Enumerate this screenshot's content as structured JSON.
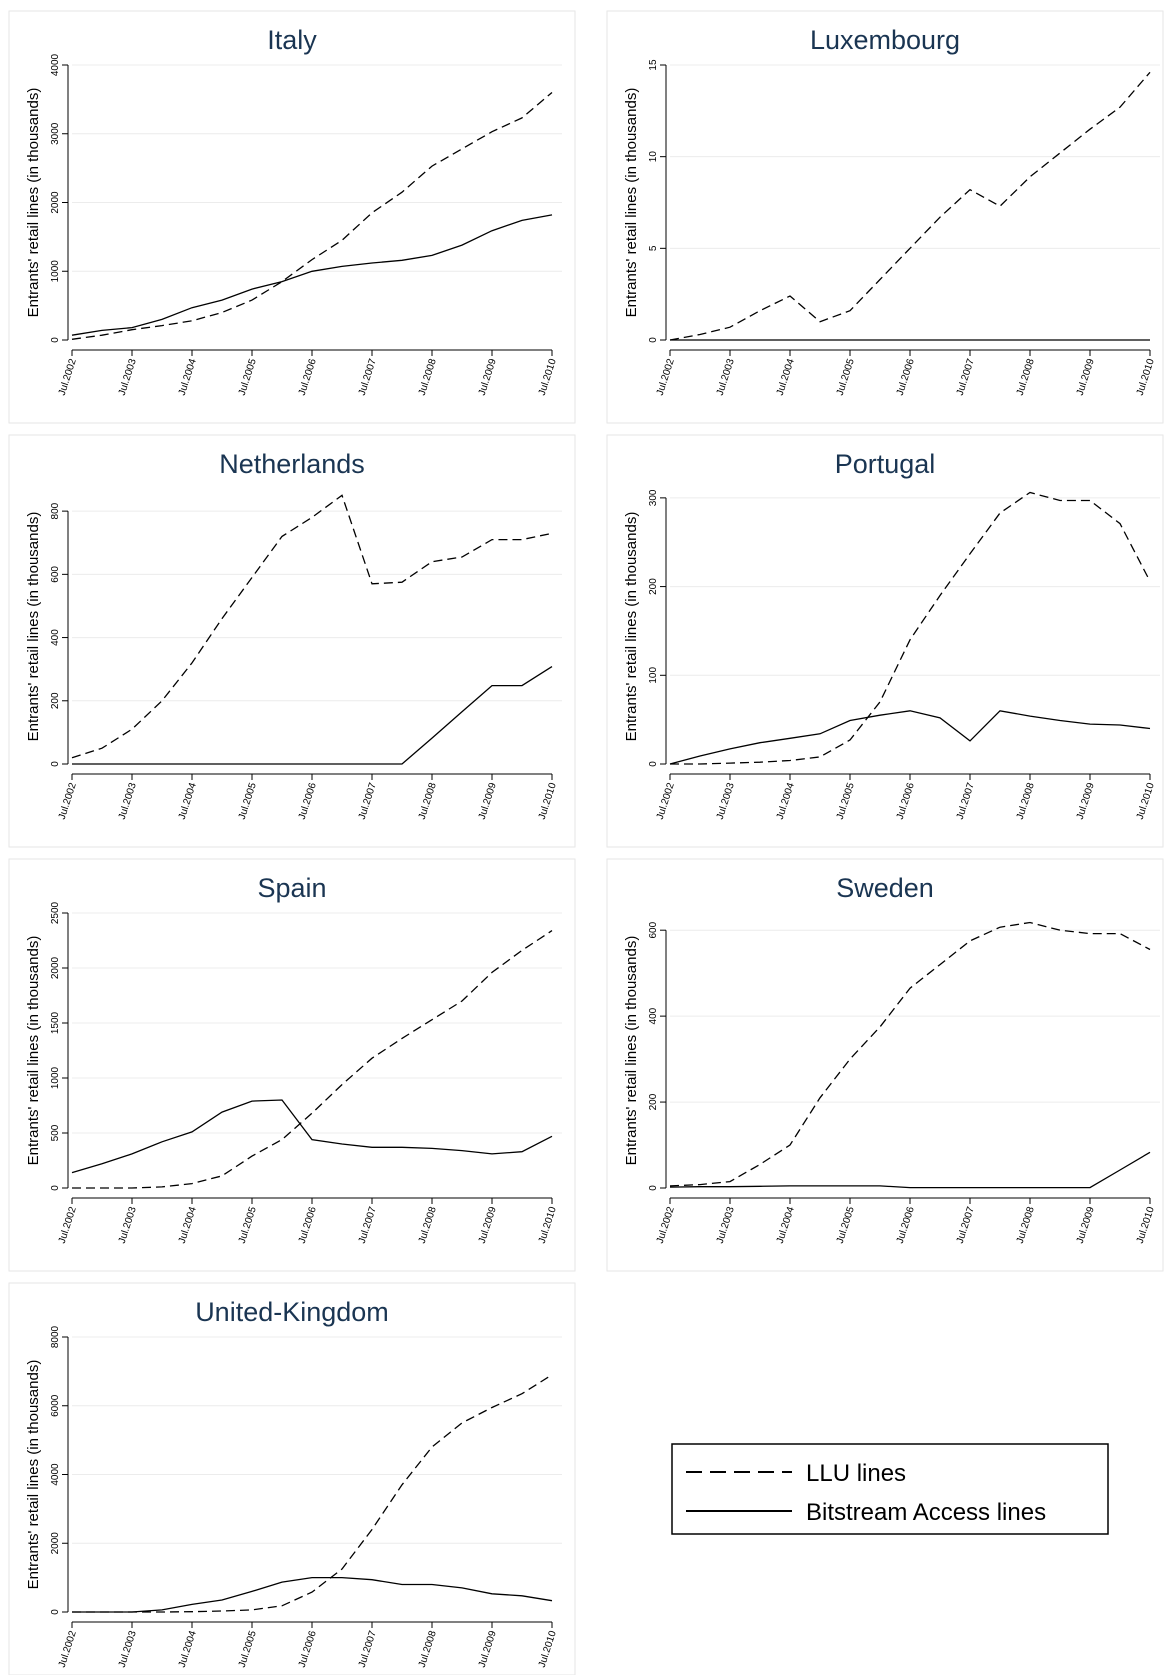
{
  "legend": {
    "llu_label": "LLU lines",
    "bsa_label": "Bitstream Access lines"
  },
  "chart_data": [
    {
      "type": "line",
      "title": "Italy",
      "ylabel": "Entrants' retail lines (in thousands)",
      "x": [
        "Jul.2002",
        "Jan.2003",
        "Jul.2003",
        "Jan.2004",
        "Jul.2004",
        "Jan.2005",
        "Jul.2005",
        "Jan.2006",
        "Jul.2006",
        "Jan.2007",
        "Jul.2007",
        "Jan.2008",
        "Jul.2008",
        "Jan.2009",
        "Jul.2009",
        "Jan.2010",
        "Jul.2010"
      ],
      "xticks": [
        "Jul.2002",
        "Jul.2003",
        "Jul.2004",
        "Jul.2005",
        "Jul.2006",
        "Jul.2007",
        "Jul.2008",
        "Jul.2009",
        "Jul.2010"
      ],
      "ylim": [
        0,
        4000
      ],
      "yticks": [
        0,
        1000,
        2000,
        3000,
        4000
      ],
      "series": [
        {
          "name": "LLU lines",
          "values": [
            10,
            70,
            150,
            210,
            280,
            400,
            580,
            850,
            1170,
            1450,
            1850,
            2150,
            2530,
            2780,
            3030,
            3230,
            3600
          ]
        },
        {
          "name": "Bitstream Access lines",
          "values": [
            70,
            140,
            180,
            300,
            470,
            580,
            740,
            850,
            1000,
            1070,
            1120,
            1160,
            1230,
            1380,
            1590,
            1740,
            1820
          ]
        }
      ]
    },
    {
      "type": "line",
      "title": "Luxembourg",
      "ylabel": "Entrants' retail lines (in thousands)",
      "x": [
        "Jul.2002",
        "Jan.2003",
        "Jul.2003",
        "Jan.2004",
        "Jul.2004",
        "Jan.2005",
        "Jul.2005",
        "Jan.2006",
        "Jul.2006",
        "Jan.2007",
        "Jul.2007",
        "Jan.2008",
        "Jul.2008",
        "Jan.2009",
        "Jul.2009",
        "Jan.2010",
        "Jul.2010"
      ],
      "xticks": [
        "Jul.2002",
        "Jul.2003",
        "Jul.2004",
        "Jul.2005",
        "Jul.2006",
        "Jul.2007",
        "Jul.2008",
        "Jul.2009",
        "Jul.2010"
      ],
      "ylim": [
        0,
        15
      ],
      "yticks": [
        0,
        5,
        10,
        15
      ],
      "series": [
        {
          "name": "LLU lines",
          "values": [
            0,
            0.3,
            0.7,
            1.6,
            2.4,
            1.0,
            1.6,
            3.3,
            5.0,
            6.7,
            8.2,
            7.3,
            8.9,
            10.2,
            11.5,
            12.7,
            14.6
          ]
        },
        {
          "name": "Bitstream Access lines",
          "values": [
            0,
            0,
            0,
            0,
            0,
            0,
            0,
            0,
            0,
            0,
            0,
            0,
            0,
            0,
            0,
            0,
            0
          ]
        }
      ]
    },
    {
      "type": "line",
      "title": "Netherlands",
      "ylabel": "Entrants' retail lines (in thousands)",
      "x": [
        "Jul.2002",
        "Jan.2003",
        "Jul.2003",
        "Jan.2004",
        "Jul.2004",
        "Jan.2005",
        "Jul.2005",
        "Jan.2006",
        "Jul.2006",
        "Jan.2007",
        "Jul.2007",
        "Jan.2008",
        "Jul.2008",
        "Jan.2009",
        "Jul.2009",
        "Jan.2010",
        "Jul.2010"
      ],
      "xticks": [
        "Jul.2002",
        "Jul.2003",
        "Jul.2004",
        "Jul.2005",
        "Jul.2006",
        "Jul.2007",
        "Jul.2008",
        "Jul.2009",
        "Jul.2010"
      ],
      "ylim": [
        0,
        870
      ],
      "yticks": [
        0,
        200,
        400,
        600,
        800
      ],
      "series": [
        {
          "name": "LLU lines",
          "values": [
            20,
            50,
            110,
            200,
            320,
            460,
            590,
            720,
            780,
            850,
            570,
            575,
            640,
            655,
            710,
            710,
            730
          ]
        },
        {
          "name": "Bitstream Access lines",
          "values": [
            0,
            0,
            0,
            0,
            0,
            0,
            0,
            0,
            0,
            0,
            0,
            0,
            82,
            165,
            248,
            248,
            308
          ]
        }
      ]
    },
    {
      "type": "line",
      "title": "Portugal",
      "ylabel": "Entrants' retail lines (in thousands)",
      "x": [
        "Jul.2002",
        "Jan.2003",
        "Jul.2003",
        "Jan.2004",
        "Jul.2004",
        "Jan.2005",
        "Jul.2005",
        "Jan.2006",
        "Jul.2006",
        "Jan.2007",
        "Jul.2007",
        "Jan.2008",
        "Jul.2008",
        "Jan.2009",
        "Jul.2009",
        "Jan.2010",
        "Jul.2010"
      ],
      "xticks": [
        "Jul.2002",
        "Jul.2003",
        "Jul.2004",
        "Jul.2005",
        "Jul.2006",
        "Jul.2007",
        "Jul.2008",
        "Jul.2009",
        "Jul.2010"
      ],
      "ylim": [
        0,
        310
      ],
      "yticks": [
        0,
        100,
        200,
        300
      ],
      "series": [
        {
          "name": "LLU lines",
          "values": [
            0,
            0,
            1,
            2,
            4,
            8,
            27,
            70,
            140,
            190,
            237,
            283,
            306,
            297,
            297,
            271,
            206
          ]
        },
        {
          "name": "Bitstream Access lines",
          "values": [
            0,
            9,
            17,
            24,
            29,
            34,
            49,
            55,
            60,
            52,
            26,
            60,
            54,
            49,
            45,
            44,
            40
          ]
        }
      ]
    },
    {
      "type": "line",
      "title": "Spain",
      "ylabel": "Entrants' retail lines (in thousands)",
      "x": [
        "Jul.2002",
        "Jan.2003",
        "Jul.2003",
        "Jan.2004",
        "Jul.2004",
        "Jan.2005",
        "Jul.2005",
        "Jan.2006",
        "Jul.2006",
        "Jan.2007",
        "Jul.2007",
        "Jan.2008",
        "Jul.2008",
        "Jan.2009",
        "Jul.2009",
        "Jan.2010",
        "Jul.2010"
      ],
      "xticks": [
        "Jul.2002",
        "Jul.2003",
        "Jul.2004",
        "Jul.2005",
        "Jul.2006",
        "Jul.2007",
        "Jul.2008",
        "Jul.2009",
        "Jul.2010"
      ],
      "ylim": [
        0,
        2500
      ],
      "yticks": [
        0,
        500,
        1000,
        1500,
        2000,
        2500
      ],
      "series": [
        {
          "name": "LLU lines",
          "values": [
            0,
            0,
            0,
            10,
            40,
            110,
            290,
            440,
            680,
            940,
            1180,
            1360,
            1530,
            1700,
            1960,
            2160,
            2340
          ]
        },
        {
          "name": "Bitstream Access lines",
          "values": [
            140,
            220,
            310,
            420,
            510,
            690,
            790,
            800,
            440,
            400,
            370,
            370,
            360,
            340,
            310,
            330,
            470
          ]
        }
      ]
    },
    {
      "type": "line",
      "title": "Sweden",
      "ylabel": "Entrants' retail lines (in thousands)",
      "x": [
        "Jul.2002",
        "Jan.2003",
        "Jul.2003",
        "Jan.2004",
        "Jul.2004",
        "Jan.2005",
        "Jul.2005",
        "Jan.2006",
        "Jul.2006",
        "Jan.2007",
        "Jul.2007",
        "Jan.2008",
        "Jul.2008",
        "Jan.2009",
        "Jul.2009",
        "Jan.2010",
        "Jul.2010"
      ],
      "xticks": [
        "Jul.2002",
        "Jul.2003",
        "Jul.2004",
        "Jul.2005",
        "Jul.2006",
        "Jul.2007",
        "Jul.2008",
        "Jul.2009",
        "Jul.2010"
      ],
      "ylim": [
        0,
        640
      ],
      "yticks": [
        0,
        200,
        400,
        600
      ],
      "series": [
        {
          "name": "LLU lines",
          "values": [
            5,
            8,
            15,
            55,
            100,
            210,
            300,
            375,
            465,
            520,
            575,
            607,
            618,
            600,
            592,
            592,
            555
          ]
        },
        {
          "name": "Bitstream Access lines",
          "values": [
            2,
            3,
            3,
            4,
            5,
            5,
            5,
            5,
            1,
            1,
            1,
            1,
            1,
            1,
            1,
            42,
            83
          ]
        }
      ]
    },
    {
      "type": "line",
      "title": "United-Kingdom",
      "ylabel": "Entrants' retail lines (in thousands)",
      "x": [
        "Jul.2002",
        "Jan.2003",
        "Jul.2003",
        "Jan.2004",
        "Jul.2004",
        "Jan.2005",
        "Jul.2005",
        "Jan.2006",
        "Jul.2006",
        "Jan.2007",
        "Jul.2007",
        "Jan.2008",
        "Jul.2008",
        "Jan.2009",
        "Jul.2009",
        "Jan.2010",
        "Jul.2010"
      ],
      "xticks": [
        "Jul.2002",
        "Jul.2003",
        "Jul.2004",
        "Jul.2005",
        "Jul.2006",
        "Jul.2007",
        "Jul.2008",
        "Jul.2009",
        "Jul.2010"
      ],
      "ylim": [
        0,
        8000
      ],
      "yticks": [
        0,
        2000,
        4000,
        6000,
        8000
      ],
      "series": [
        {
          "name": "LLU lines",
          "values": [
            0,
            0,
            0,
            0,
            10,
            30,
            60,
            180,
            580,
            1250,
            2400,
            3700,
            4800,
            5500,
            5950,
            6350,
            6900
          ]
        },
        {
          "name": "Bitstream Access lines",
          "values": [
            0,
            0,
            0,
            60,
            220,
            350,
            600,
            870,
            1000,
            1000,
            940,
            800,
            800,
            700,
            530,
            470,
            330
          ]
        }
      ]
    }
  ]
}
